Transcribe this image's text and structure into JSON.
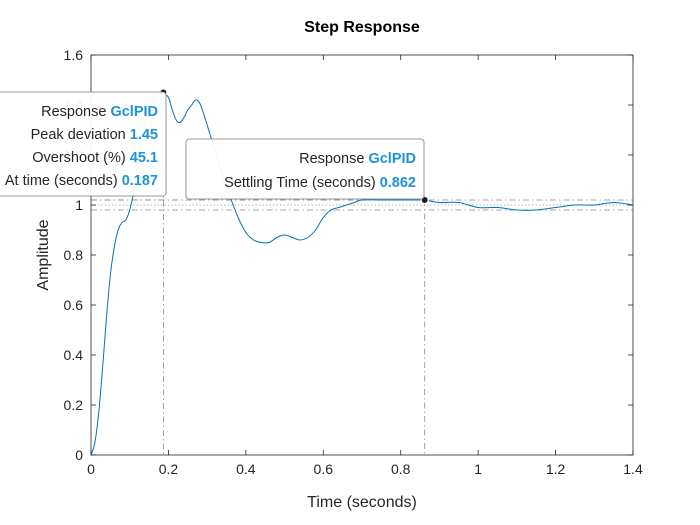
{
  "chart_data": {
    "type": "line",
    "title": "Step Response",
    "xlabel": "Time (seconds)",
    "ylabel": "Amplitude",
    "xlim": [
      0,
      1.4
    ],
    "ylim": [
      0,
      1.6
    ],
    "xticks": [
      "0",
      "0.2",
      "0.4",
      "0.6",
      "0.8",
      "1",
      "1.2",
      "1.4"
    ],
    "yticks": [
      "0",
      "0.2",
      "0.4",
      "0.6",
      "0.8",
      "1",
      "1.2",
      "1.4",
      "1.6"
    ],
    "grid": false,
    "line_color": "#0072bd",
    "series": [
      {
        "x": [
          0,
          0.01,
          0.02,
          0.03,
          0.04,
          0.05,
          0.06,
          0.07,
          0.08,
          0.09,
          0.1,
          0.11,
          0.12,
          0.13,
          0.14,
          0.15,
          0.16,
          0.17,
          0.18,
          0.187,
          0.2,
          0.21,
          0.22,
          0.23,
          0.24,
          0.25,
          0.26,
          0.27,
          0.28,
          0.29,
          0.3,
          0.31,
          0.32,
          0.34,
          0.36,
          0.38,
          0.4,
          0.42,
          0.44,
          0.46,
          0.48,
          0.5,
          0.52,
          0.54,
          0.56,
          0.58,
          0.6,
          0.62,
          0.64,
          0.66,
          0.68,
          0.7,
          0.75,
          0.8,
          0.85,
          0.862,
          0.9,
          0.95,
          1.0,
          1.05,
          1.1,
          1.15,
          1.2,
          1.25,
          1.3,
          1.35,
          1.4
        ],
        "y": [
          0,
          0.05,
          0.17,
          0.35,
          0.55,
          0.72,
          0.83,
          0.9,
          0.93,
          0.94,
          0.98,
          1.05,
          1.17,
          1.27,
          1.34,
          1.39,
          1.42,
          1.44,
          1.45,
          1.45,
          1.43,
          1.38,
          1.34,
          1.33,
          1.35,
          1.38,
          1.4,
          1.42,
          1.41,
          1.37,
          1.32,
          1.27,
          1.22,
          1.12,
          1.03,
          0.95,
          0.89,
          0.86,
          0.85,
          0.85,
          0.87,
          0.88,
          0.87,
          0.86,
          0.87,
          0.9,
          0.95,
          0.98,
          0.99,
          1.0,
          1.01,
          1.02,
          1.02,
          1.02,
          1.02,
          1.02,
          1.01,
          1.01,
          0.99,
          0.99,
          0.98,
          0.98,
          0.99,
          1.0,
          1.0,
          1.01,
          1.0
        ]
      }
    ],
    "settling_band": [
      0.98,
      1.02
    ],
    "annotations": [
      {
        "x": 0.187,
        "y": 1.45,
        "lines": [
          {
            "label": "Response",
            "value": "GclPID"
          },
          {
            "label": "Peak deviation",
            "value": "1.45"
          },
          {
            "label": "Overshoot (%)",
            "value": "45.1"
          },
          {
            "label": "At time (seconds)",
            "value": "0.187"
          }
        ]
      },
      {
        "x": 0.862,
        "y": 1.02,
        "lines": [
          {
            "label": "Response",
            "value": "GclPID"
          },
          {
            "label": "Settling Time (seconds)",
            "value": "0.862"
          }
        ]
      }
    ]
  }
}
